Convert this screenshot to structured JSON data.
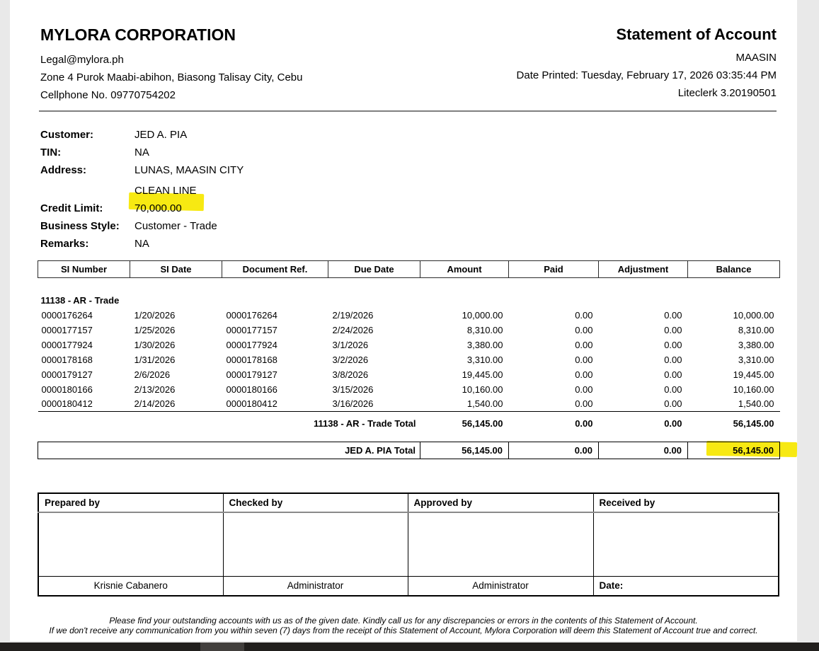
{
  "header": {
    "company_name": "MYLORA CORPORATION",
    "email": "Legal@mylora.ph",
    "address": "Zone 4 Purok Maabi-abihon, Biasong Talisay City, Cebu",
    "phone": "Cellphone No. 09770754202",
    "doc_title": "Statement of Account",
    "branch": "MAASIN",
    "date_printed": "Date Printed: Tuesday, February 17, 2026 03:35:44 PM",
    "software": "Liteclerk 3.20190501"
  },
  "customer": {
    "labels": {
      "customer": "Customer:",
      "tin": "TIN:",
      "address": "Address:",
      "credit_limit": "Credit Limit:",
      "business_style": "Business Style:",
      "remarks": "Remarks:"
    },
    "name": "JED A. PIA",
    "tin": "NA",
    "address": "LUNAS, MAASIN CITY",
    "line": "CLEAN LINE",
    "credit_limit": "70,000.00",
    "business_style": "Customer - Trade",
    "remarks": "NA"
  },
  "table": {
    "columns": [
      "SI Number",
      "SI Date",
      "Document Ref.",
      "Due Date",
      "Amount",
      "Paid",
      "Adjustment",
      "Balance"
    ],
    "group": "11138 - AR - Trade",
    "rows": [
      [
        "0000176264",
        "1/20/2026",
        "0000176264",
        "2/19/2026",
        "10,000.00",
        "0.00",
        "0.00",
        "10,000.00"
      ],
      [
        "0000177157",
        "1/25/2026",
        "0000177157",
        "2/24/2026",
        "8,310.00",
        "0.00",
        "0.00",
        "8,310.00"
      ],
      [
        "0000177924",
        "1/30/2026",
        "0000177924",
        "3/1/2026",
        "3,380.00",
        "0.00",
        "0.00",
        "3,380.00"
      ],
      [
        "0000178168",
        "1/31/2026",
        "0000178168",
        "3/2/2026",
        "3,310.00",
        "0.00",
        "0.00",
        "3,310.00"
      ],
      [
        "0000179127",
        "2/6/2026",
        "0000179127",
        "3/8/2026",
        "19,445.00",
        "0.00",
        "0.00",
        "19,445.00"
      ],
      [
        "0000180166",
        "2/13/2026",
        "0000180166",
        "3/15/2026",
        "10,160.00",
        "0.00",
        "0.00",
        "10,160.00"
      ],
      [
        "0000180412",
        "2/14/2026",
        "0000180412",
        "3/16/2026",
        "1,540.00",
        "0.00",
        "0.00",
        "1,540.00"
      ]
    ],
    "group_total": {
      "label": "11138 - AR - Trade Total",
      "amount": "56,145.00",
      "paid": "0.00",
      "adjustment": "0.00",
      "balance": "56,145.00"
    },
    "grand_total": {
      "label": "JED A. PIA Total",
      "amount": "56,145.00",
      "paid": "0.00",
      "adjustment": "0.00",
      "balance": "56,145.00"
    }
  },
  "signatures": {
    "headers": [
      "Prepared by",
      "Checked by",
      "Approved by",
      "Received by"
    ],
    "names": [
      "Krisnie Cabanero",
      "Administrator",
      "Administrator"
    ],
    "date_label": "Date:"
  },
  "footer": {
    "line1": "Please find your outstanding accounts with us as of the given date. Kindly call us for any discrepancies or errors in the contents of this Statement of Account.",
    "line2": "If we don't receive any communication from you within seven (7) days from the receipt of this Statement of Account, Mylora Corporation will deem this Statement of Account true and correct."
  },
  "colors": {
    "highlight_yellow": "#f7e912",
    "page_background": "#ffffff",
    "app_background": "#e9e9e9",
    "divider_gray": "#7f7f7f",
    "scrollbar_track": "#211f1d",
    "scrollbar_thumb": "#423f3d"
  }
}
